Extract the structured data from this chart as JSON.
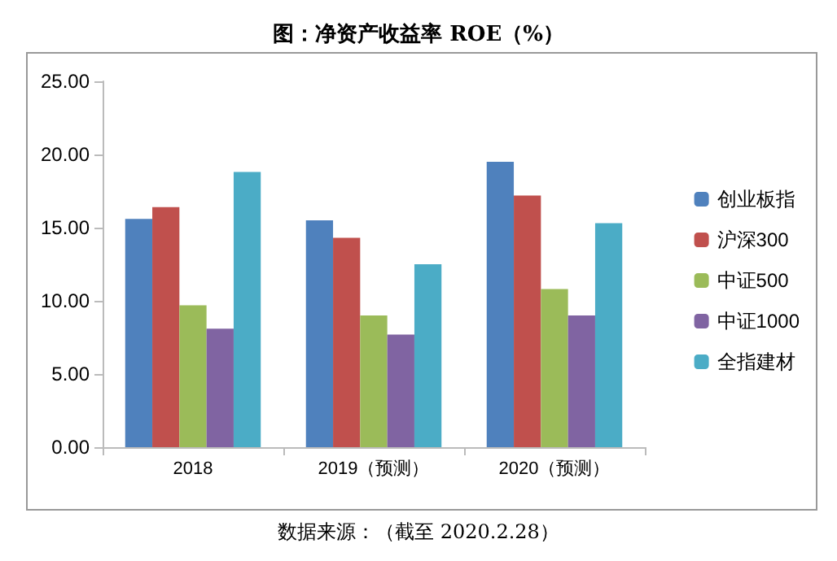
{
  "chart_data": {
    "type": "bar",
    "title": "图：净资产收益率 ROE（%）",
    "categories": [
      "2018",
      "2019（预测）",
      "2020（预测）"
    ],
    "series": [
      {
        "name": "创业板指",
        "color": "#4f81bd",
        "values": [
          15.6,
          15.5,
          19.5
        ]
      },
      {
        "name": "沪深300",
        "color": "#c0504d",
        "values": [
          16.4,
          14.3,
          17.2
        ]
      },
      {
        "name": "中证500",
        "color": "#9bbb59",
        "values": [
          9.7,
          9.0,
          10.8
        ]
      },
      {
        "name": "中证1000",
        "color": "#8064a2",
        "values": [
          8.1,
          7.7,
          9.0
        ]
      },
      {
        "name": "全指建材",
        "color": "#4bacc6",
        "values": [
          18.8,
          12.5,
          15.3
        ]
      }
    ],
    "ylim": [
      0,
      25
    ],
    "yticks": [
      {
        "value": 0,
        "label": "0.00"
      },
      {
        "value": 5,
        "label": "5.00"
      },
      {
        "value": 10,
        "label": "10.00"
      },
      {
        "value": 15,
        "label": "15.00"
      },
      {
        "value": 20,
        "label": "20.00"
      },
      {
        "value": 25,
        "label": "25.00"
      }
    ],
    "grid": false,
    "legend": "right",
    "annotations": [
      "数据来源：（截至 2020.2.28）"
    ]
  }
}
